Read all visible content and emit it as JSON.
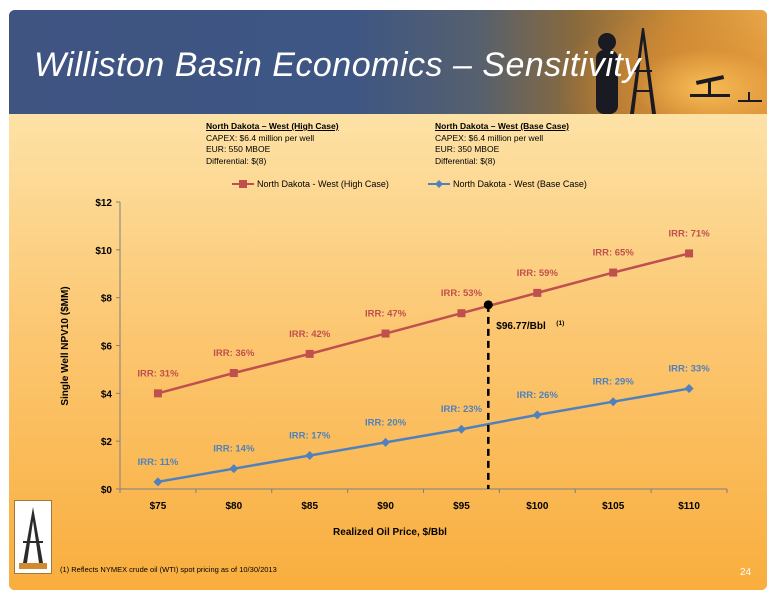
{
  "slide": {
    "title": "Williston Basin Economics – Sensitivity",
    "page_number": "24",
    "footnote": "(1) Reflects NYMEX crude oil (WTI) spot pricing as of 10/30/2013"
  },
  "cases": {
    "high": {
      "heading": "North Dakota – West (High Case)",
      "capex": "CAPEX: $6.4 million per well",
      "eur": "EUR: 550 MBOE",
      "differential": "Differential: $(8)"
    },
    "base": {
      "heading": "North Dakota – West (Base Case)",
      "capex": "CAPEX: $6.4 million per well",
      "eur": "EUR: 350 MBOE",
      "differential": "Differential: $(8)"
    }
  },
  "colors": {
    "high": "#c0504d",
    "base": "#4f81bd",
    "marker_line": "#000000"
  },
  "chart_data": {
    "type": "line",
    "xlabel": "Realized Oil Price, $/Bbl",
    "ylabel": "Single Well NPV10 ($MM)",
    "categories": [
      "$75",
      "$80",
      "$85",
      "$90",
      "$95",
      "$100",
      "$105",
      "$110"
    ],
    "x_values": [
      75,
      80,
      85,
      90,
      95,
      100,
      105,
      110
    ],
    "y_ticks": [
      "$0",
      "$2",
      "$4",
      "$6",
      "$8",
      "$10",
      "$12"
    ],
    "ylim": [
      0,
      12
    ],
    "series": [
      {
        "name": "North Dakota - West (High Case)",
        "key": "high",
        "values": [
          4.0,
          4.85,
          5.65,
          6.5,
          7.35,
          8.2,
          9.05,
          9.85
        ],
        "labels": [
          "IRR: 31%",
          "IRR: 36%",
          "IRR: 42%",
          "IRR: 47%",
          "IRR: 53%",
          "IRR: 59%",
          "IRR: 65%",
          "IRR: 71%"
        ]
      },
      {
        "name": "North Dakota - West (Base Case)",
        "key": "base",
        "values": [
          0.3,
          0.85,
          1.4,
          1.95,
          2.5,
          3.1,
          3.65,
          4.2
        ],
        "labels": [
          "IRR: 11%",
          "IRR: 14%",
          "IRR: 17%",
          "IRR: 20%",
          "IRR: 23%",
          "IRR: 26%",
          "IRR: 29%",
          "IRR: 33%"
        ]
      }
    ],
    "marker": {
      "x": 96.77,
      "y": 7.7,
      "label": "$96.77/Bbl",
      "note": "(1)"
    },
    "legend_position": "top"
  }
}
